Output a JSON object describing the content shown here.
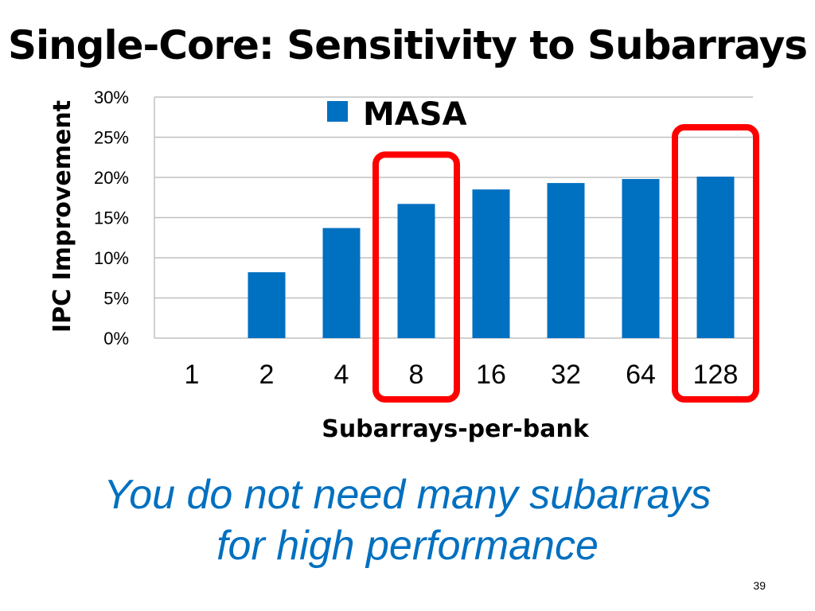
{
  "slide": {
    "title": "Single-Core: Sensitivity to Subarrays",
    "message_line1": "You do not need many subarrays",
    "message_line2": "for high performance",
    "page_number": "39"
  },
  "colors": {
    "bar": "#0070c0",
    "highlight": "#ff0000",
    "message": "#0070c0",
    "grid": "#c0c0c0"
  },
  "chart_data": {
    "type": "bar",
    "categories": [
      "1",
      "2",
      "4",
      "8",
      "16",
      "32",
      "64",
      "128"
    ],
    "series": [
      {
        "name": "MASA",
        "values": [
          0.0,
          8.2,
          13.7,
          16.7,
          18.5,
          19.3,
          19.8,
          20.1
        ]
      }
    ],
    "title": "",
    "xlabel": "Subarrays-per-bank",
    "ylabel": "IPC Improvement",
    "ylim": [
      0,
      30
    ],
    "yticks": [
      0,
      5,
      10,
      15,
      20,
      25,
      30
    ],
    "ytick_labels": [
      "0%",
      "5%",
      "10%",
      "15%",
      "20%",
      "25%",
      "30%"
    ],
    "grid": true,
    "legend": "top-center",
    "highlighted_categories": [
      "8",
      "128"
    ]
  }
}
